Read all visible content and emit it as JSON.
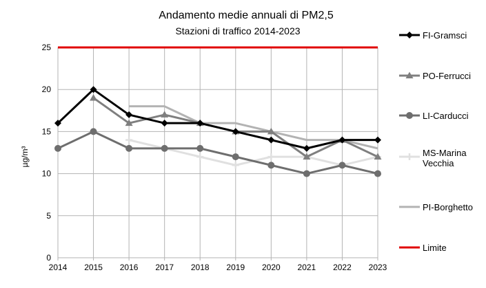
{
  "chart_data": {
    "type": "line",
    "title": "Andamento medie annuali di PM2,5",
    "subtitle": "Stazioni di traffico 2014-2023",
    "xlabel": "",
    "ylabel": "µg/m³",
    "x": [
      "2014",
      "2015",
      "2016",
      "2017",
      "2018",
      "2019",
      "2020",
      "2021",
      "2022",
      "2023"
    ],
    "ylim": [
      0,
      25
    ],
    "yticks": [
      0,
      5,
      10,
      15,
      20,
      25
    ],
    "grid": true,
    "legend_position": "right",
    "series": [
      {
        "name": "FI-Gramsci",
        "color": "#000000",
        "marker": "diamond",
        "values": [
          16,
          20,
          17,
          16,
          16,
          15,
          14,
          13,
          14,
          14
        ]
      },
      {
        "name": "PO-Ferrucci",
        "color": "#7f7f7f",
        "marker": "triangle",
        "values": [
          null,
          19,
          16,
          17,
          16,
          15,
          15,
          12,
          14,
          12
        ]
      },
      {
        "name": "LI-Carducci",
        "color": "#6e6e6e",
        "marker": "circle",
        "values": [
          13,
          15,
          13,
          13,
          13,
          12,
          11,
          10,
          11,
          10
        ]
      },
      {
        "name": "MS-Marina Vecchia",
        "color": "#e0e0e0",
        "marker": "plus",
        "values": [
          null,
          null,
          14,
          13,
          12,
          11,
          12,
          12,
          11,
          12
        ]
      },
      {
        "name": "PI-Borghetto",
        "color": "#b3b3b3",
        "marker": "none",
        "values": [
          null,
          null,
          18,
          18,
          16,
          16,
          15,
          14,
          14,
          13
        ]
      },
      {
        "name": "Limite",
        "color": "#e00000",
        "marker": "none",
        "values": [
          25,
          25,
          25,
          25,
          25,
          25,
          25,
          25,
          25,
          25
        ]
      }
    ]
  }
}
